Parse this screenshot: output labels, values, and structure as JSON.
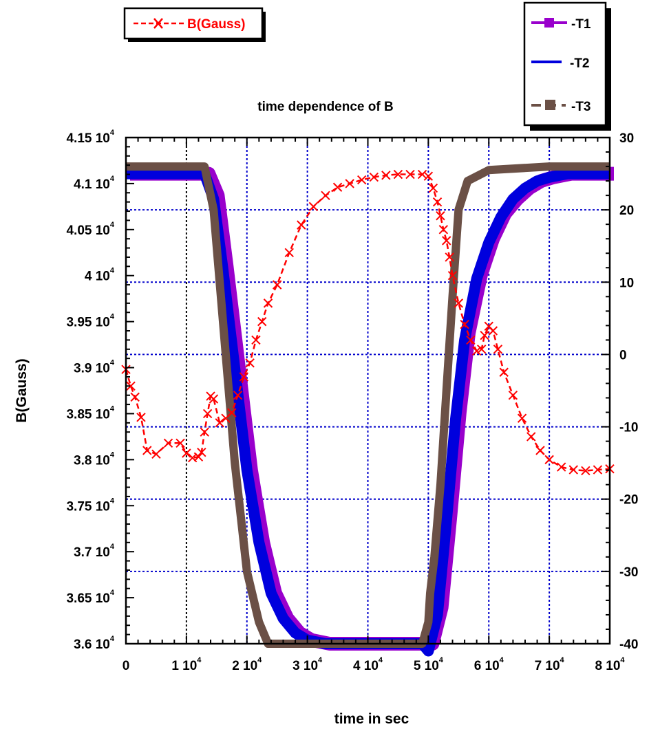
{
  "chart_data": {
    "type": "line",
    "title": "time dependence of B",
    "xlabel": "time  in sec",
    "ylabel": "B(Gauss)",
    "xlim": [
      0,
      80000
    ],
    "ylim_left": [
      36000,
      41500
    ],
    "ylim_right": [
      -40,
      30
    ],
    "grid": true,
    "x_ticks": [
      {
        "value": 0,
        "label": "0",
        "sup": ""
      },
      {
        "value": 10000,
        "label": "1 10",
        "sup": "4"
      },
      {
        "value": 20000,
        "label": "2 10",
        "sup": "4"
      },
      {
        "value": 30000,
        "label": "3 10",
        "sup": "4"
      },
      {
        "value": 40000,
        "label": "4 10",
        "sup": "4"
      },
      {
        "value": 50000,
        "label": "5 10",
        "sup": "4"
      },
      {
        "value": 60000,
        "label": "6 10",
        "sup": "4"
      },
      {
        "value": 70000,
        "label": "7 10",
        "sup": "4"
      },
      {
        "value": 80000,
        "label": "8 10",
        "sup": "4"
      }
    ],
    "y_left_ticks": [
      {
        "value": 36000,
        "label": "3.6 10",
        "sup": "4"
      },
      {
        "value": 36500,
        "label": "3.65 10",
        "sup": "4"
      },
      {
        "value": 37000,
        "label": "3.7 10",
        "sup": "4"
      },
      {
        "value": 37500,
        "label": "3.75 10",
        "sup": "4"
      },
      {
        "value": 38000,
        "label": "3.8 10",
        "sup": "4"
      },
      {
        "value": 38500,
        "label": "3.85 10",
        "sup": "4"
      },
      {
        "value": 39000,
        "label": "3.9 10",
        "sup": "4"
      },
      {
        "value": 39500,
        "label": "3.95 10",
        "sup": "4"
      },
      {
        "value": 40000,
        "label": "4 10",
        "sup": "4"
      },
      {
        "value": 40500,
        "label": "4.05 10",
        "sup": "4"
      },
      {
        "value": 41000,
        "label": "4.1 10",
        "sup": "4"
      },
      {
        "value": 41500,
        "label": "4.15 10",
        "sup": "4"
      }
    ],
    "y_right_ticks": [
      {
        "value": -40,
        "label": "-40"
      },
      {
        "value": -30,
        "label": "-30"
      },
      {
        "value": -20,
        "label": "-20"
      },
      {
        "value": -10,
        "label": "-10"
      },
      {
        "value": 0,
        "label": "0"
      },
      {
        "value": 10,
        "label": "10"
      },
      {
        "value": 20,
        "label": "20"
      },
      {
        "value": 30,
        "label": "30"
      }
    ],
    "legend_left": [
      {
        "name": "B(Gauss)",
        "color": "#ff0000",
        "marker": "x",
        "dash": true
      }
    ],
    "legend_right": [
      {
        "name": "T1",
        "color": "#9900cc",
        "marker": "diamond"
      },
      {
        "name": "T2",
        "color": "#0000dd",
        "marker": "none"
      },
      {
        "name": "T3",
        "color": "#6b5046",
        "marker": "square"
      }
    ],
    "series": [
      {
        "name": "B(Gauss)",
        "axis": "left",
        "color": "#ff0000",
        "x": [
          0,
          800,
          1500,
          2500,
          3500,
          5000,
          7000,
          9000,
          10000,
          11000,
          12000,
          12500,
          13000,
          13500,
          14000,
          14500,
          15500,
          16500,
          17500,
          18500,
          19500,
          20500,
          21500,
          22500,
          23500,
          25000,
          27000,
          29000,
          31000,
          33000,
          35000,
          37000,
          39000,
          41000,
          43000,
          45000,
          47000,
          49000,
          50000,
          50800,
          51500,
          52000,
          52500,
          53000,
          53500,
          54000,
          55000,
          56000,
          57000,
          58000,
          58800,
          59300,
          60000,
          60700,
          61500,
          62500,
          64000,
          65500,
          67000,
          68500,
          70000,
          72000,
          74000,
          76000,
          78000,
          80000
        ],
        "y": [
          38980,
          38800,
          38680,
          38460,
          38100,
          38060,
          38180,
          38180,
          38070,
          38020,
          38030,
          38080,
          38300,
          38500,
          38690,
          38660,
          38400,
          38450,
          38510,
          38700,
          38900,
          39050,
          39300,
          39500,
          39700,
          39900,
          40250,
          40550,
          40750,
          40870,
          40960,
          41000,
          41040,
          41070,
          41090,
          41100,
          41100,
          41100,
          41080,
          40950,
          40800,
          40650,
          40500,
          40380,
          40200,
          40000,
          39700,
          39470,
          39300,
          39180,
          39200,
          39350,
          39450,
          39400,
          39200,
          38950,
          38700,
          38450,
          38250,
          38100,
          38000,
          37920,
          37890,
          37880,
          37890,
          37900
        ]
      },
      {
        "name": "T1",
        "axis": "right",
        "color": "#9900cc",
        "x": [
          0,
          5000,
          10000,
          13000,
          14500,
          16000,
          18000,
          20000,
          22000,
          24000,
          26000,
          28000,
          30000,
          33000,
          36000,
          40000,
          45000,
          49000,
          50000,
          51500,
          53000,
          54500,
          56000,
          58000,
          60000,
          62000,
          64000,
          66000,
          68000,
          70000,
          73000,
          76000,
          80000
        ],
        "y": [
          25,
          25,
          25,
          25,
          22,
          12,
          -2,
          -16,
          -26,
          -33,
          -36.5,
          -38.5,
          -39.5,
          -40,
          -40,
          -40,
          -40,
          -40,
          -40,
          -35,
          -22,
          -8,
          3,
          11,
          16,
          19.5,
          21.5,
          23,
          24,
          24.5,
          25,
          25,
          25
        ]
      },
      {
        "name": "T2",
        "axis": "right",
        "color": "#0000dd",
        "x": [
          0,
          5000,
          10000,
          13000,
          14500,
          16000,
          18000,
          20000,
          22000,
          24000,
          26000,
          28000,
          30000,
          33000,
          36000,
          40000,
          45000,
          49000,
          50000,
          51500,
          53000,
          54500,
          56000,
          58000,
          60000,
          62000,
          64000,
          66000,
          68000,
          70000,
          73000,
          76000,
          80000
        ],
        "y": [
          25,
          25,
          25,
          25,
          21.5,
          12,
          -2,
          -16,
          -26,
          -33,
          -36.5,
          -38.5,
          -39.5,
          -40,
          -40,
          -40,
          -40,
          -40,
          -41,
          -36,
          -23,
          -9,
          2,
          10.5,
          15.5,
          19,
          21.5,
          23,
          24,
          24.5,
          25,
          25,
          25
        ]
      },
      {
        "name": "T3",
        "axis": "right",
        "color": "#6b5046",
        "x": [
          0,
          3000,
          8000,
          13000,
          14500,
          16000,
          18000,
          20000,
          22000,
          23500,
          24500,
          30000,
          40000,
          49000,
          50000,
          50300,
          51000,
          52000,
          53000,
          54000,
          55000,
          56500,
          60000,
          70000,
          80000
        ],
        "y": [
          26,
          26,
          26,
          26,
          20,
          5,
          -15,
          -30,
          -37,
          -40,
          -40,
          -40,
          -40,
          -40,
          -37,
          -33,
          -28,
          -18,
          -5,
          8,
          20,
          24,
          25.5,
          26,
          26
        ]
      }
    ]
  }
}
